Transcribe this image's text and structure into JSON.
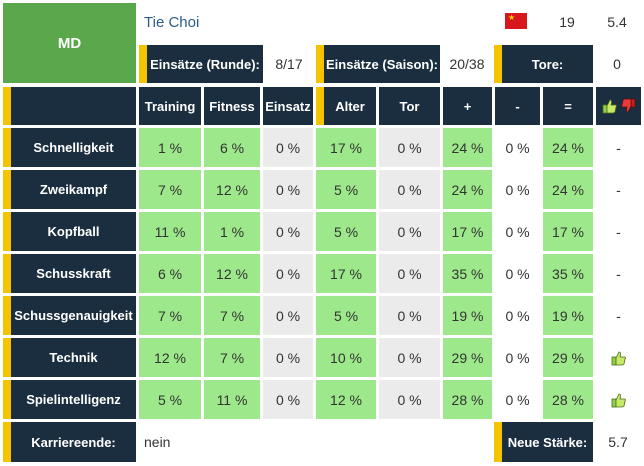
{
  "player": {
    "position": "MD",
    "name": "Tie Choi",
    "age": "19",
    "rating": "5.4",
    "flag_icon": "china-flag-icon"
  },
  "stats": {
    "round_label": "Einsätze (Runde):",
    "round_value": "8/17",
    "season_label": "Einsätze (Saison):",
    "season_value": "20/38",
    "goals_label": "Tore:",
    "goals_value": "0"
  },
  "table": {
    "headers": [
      "Training",
      "Fitness",
      "Einsatz",
      "Alter",
      "Tor",
      "+",
      "-",
      "="
    ],
    "rows": [
      {
        "name": "Schnelligkeit",
        "values": [
          "1 %",
          "6 %",
          "0 %",
          "17 %",
          "0 %",
          "24 %",
          "0 %",
          "24 %"
        ],
        "mark": "-"
      },
      {
        "name": "Zweikampf",
        "values": [
          "7 %",
          "12 %",
          "0 %",
          "5 %",
          "0 %",
          "24 %",
          "0 %",
          "24 %"
        ],
        "mark": "-"
      },
      {
        "name": "Kopfball",
        "values": [
          "11 %",
          "1 %",
          "0 %",
          "5 %",
          "0 %",
          "17 %",
          "0 %",
          "17 %"
        ],
        "mark": "-"
      },
      {
        "name": "Schusskraft",
        "values": [
          "6 %",
          "12 %",
          "0 %",
          "17 %",
          "0 %",
          "35 %",
          "0 %",
          "35 %"
        ],
        "mark": "-"
      },
      {
        "name": "Schussgenauigkeit",
        "values": [
          "7 %",
          "7 %",
          "0 %",
          "5 %",
          "0 %",
          "19 %",
          "0 %",
          "19 %"
        ],
        "mark": "-"
      },
      {
        "name": "Technik",
        "values": [
          "12 %",
          "7 %",
          "0 %",
          "10 %",
          "0 %",
          "29 %",
          "0 %",
          "29 %"
        ],
        "mark": "thumb-up"
      },
      {
        "name": "Spielintelligenz",
        "values": [
          "5 %",
          "11 %",
          "0 %",
          "12 %",
          "0 %",
          "28 %",
          "0 %",
          "28 %"
        ],
        "mark": "thumb-up"
      }
    ]
  },
  "footer": {
    "career_end_label": "Karriereende:",
    "career_end_value": "nein",
    "new_strength_label": "Neue Stärke:",
    "new_strength_value": "5.7"
  },
  "colors": {
    "navy": "#1b2e3f",
    "accent_yellow": "#f5c400",
    "green": "#9de88a",
    "gray": "#ebebeb",
    "position_green": "#5aa84b"
  }
}
